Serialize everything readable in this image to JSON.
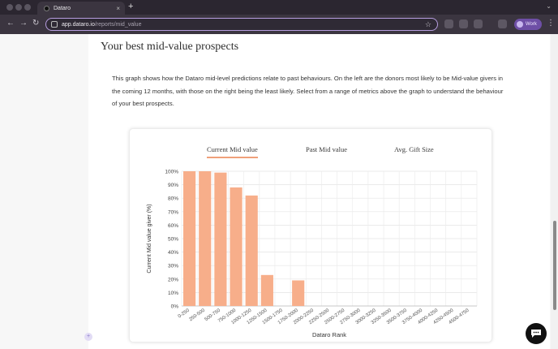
{
  "browser": {
    "tab_title": "Dataro",
    "tab_close": "×",
    "new_tab": "+",
    "url_domain": "app.dataro.io",
    "url_path": "/reports/mid_value",
    "profile_label": "Work"
  },
  "page": {
    "title": "Your best mid-value prospects",
    "description": "This graph shows how the Dataro mid-level predictions relate to past behaviours. On the left are the donors most likely to be Mid-value givers in the coming 12 months, with those on the right being the least likely. Select from a range of metrics above the graph to understand the behaviour of your best prospects."
  },
  "chart_tabs": [
    {
      "label": "Current Mid value",
      "active": true
    },
    {
      "label": "Past Mid value",
      "active": false
    },
    {
      "label": "Avg. Gift Size",
      "active": false
    }
  ],
  "chart_data": {
    "type": "bar",
    "xlabel": "Dataro Rank",
    "ylabel": "Current Mid value giver (%)",
    "ylim": [
      0,
      100
    ],
    "yticks": [
      "0%",
      "10%",
      "20%",
      "30%",
      "40%",
      "50%",
      "60%",
      "70%",
      "80%",
      "90%",
      "100%"
    ],
    "categories": [
      "0-250",
      "250-500",
      "500-750",
      "750-1000",
      "1000-1250",
      "1250-1500",
      "1500-1750",
      "1750-2000",
      "2000-2250",
      "2250-2500",
      "2500-2750",
      "2750-3000",
      "3000-3250",
      "3250-3500",
      "3500-3750",
      "3750-4000",
      "4000-4250",
      "4250-4500",
      "4500-4750"
    ],
    "values": [
      100,
      100,
      99,
      88,
      82,
      23,
      0,
      19,
      0,
      0,
      0,
      0,
      0,
      0,
      0,
      0,
      0,
      0,
      0
    ],
    "bar_color": "#f7ae8a",
    "grid": true
  }
}
